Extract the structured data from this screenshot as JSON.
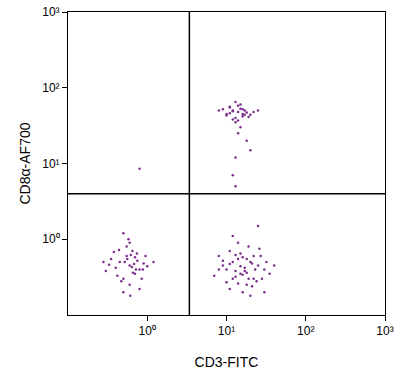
{
  "chart_data": {
    "type": "scatter",
    "log": true,
    "grid": false,
    "marker": "dot",
    "color": "#7a2c8c",
    "xlabel": "CD3-FITC",
    "ylabel": "CD8α-AF700",
    "xlim": [
      0.1,
      1000
    ],
    "ylim": [
      0.1,
      1000
    ],
    "xticks": [
      {
        "value": 1,
        "label": "10⁰"
      },
      {
        "value": 10,
        "label": "10¹"
      },
      {
        "value": 100,
        "label": "10²"
      },
      {
        "value": 1000,
        "label": "10³"
      }
    ],
    "yticks": [
      {
        "value": 1,
        "label": "10⁰"
      },
      {
        "value": 10,
        "label": "10¹"
      },
      {
        "value": 100,
        "label": "10²"
      },
      {
        "value": 1000,
        "label": "10³"
      }
    ],
    "quadrant_lines": {
      "x": 3.4,
      "y": 4
    },
    "x": [
      0.6,
      0.45,
      0.7,
      0.55,
      0.8,
      0.35,
      0.5,
      0.65,
      0.9,
      0.4,
      0.6,
      0.75,
      0.3,
      0.55,
      0.7,
      1.0,
      0.5,
      0.62,
      0.42,
      0.85,
      0.58,
      0.68,
      0.38,
      0.52,
      0.95,
      0.47,
      0.72,
      0.6,
      0.33,
      0.8,
      0.56,
      0.66,
      1.2,
      0.44,
      0.61,
      0.74,
      0.5,
      0.28,
      0.88,
      0.64,
      0.8,
      10,
      15,
      20,
      12,
      25,
      8,
      18,
      14,
      30,
      11,
      22,
      16,
      9,
      13,
      27,
      19,
      35,
      12,
      17,
      24,
      7,
      15,
      21,
      11,
      28,
      14,
      18,
      32,
      10,
      23,
      16,
      13,
      20,
      26,
      9,
      15,
      19,
      12,
      22,
      17,
      40,
      14,
      11,
      25,
      18,
      8,
      16,
      21,
      13,
      30,
      10,
      12,
      14,
      16,
      11,
      13,
      18,
      9,
      15,
      20,
      12,
      14,
      17,
      11,
      13,
      22,
      10,
      15,
      19,
      8,
      13,
      16,
      12,
      14,
      25,
      11,
      17,
      15,
      13,
      12,
      18,
      14,
      13,
      20,
      16
    ],
    "values": [
      0.45,
      0.5,
      0.35,
      0.6,
      0.4,
      0.55,
      0.3,
      0.7,
      0.48,
      0.42,
      0.25,
      0.52,
      0.38,
      0.8,
      0.58,
      0.44,
      0.2,
      0.62,
      0.33,
      0.3,
      1.0,
      0.47,
      0.68,
      0.5,
      0.6,
      0.28,
      0.4,
      0.9,
      0.46,
      0.22,
      0.55,
      0.36,
      0.5,
      0.72,
      0.18,
      0.65,
      1.2,
      0.5,
      0.4,
      0.43,
      8.5,
      0.4,
      0.35,
      0.5,
      0.3,
      0.45,
      0.6,
      0.25,
      0.55,
      0.4,
      0.7,
      0.3,
      0.2,
      0.45,
      0.38,
      0.6,
      0.8,
      0.35,
      0.5,
      0.42,
      0.28,
      0.33,
      0.65,
      0.48,
      0.22,
      0.3,
      0.9,
      0.36,
      0.5,
      0.27,
      0.4,
      0.58,
      0.32,
      0.18,
      0.75,
      0.52,
      0.44,
      0.3,
      1.1,
      0.6,
      0.38,
      0.45,
      0.26,
      0.47,
      1.5,
      0.55,
      0.4,
      0.34,
      0.24,
      0.62,
      0.2,
      45,
      50,
      48,
      42,
      55,
      40,
      47,
      52,
      60,
      44,
      38,
      58,
      50,
      46,
      35,
      48,
      43,
      53,
      41,
      50,
      65,
      45,
      49,
      37,
      50,
      56,
      44,
      30,
      12,
      7,
      20,
      25,
      5,
      15,
      52
    ]
  }
}
